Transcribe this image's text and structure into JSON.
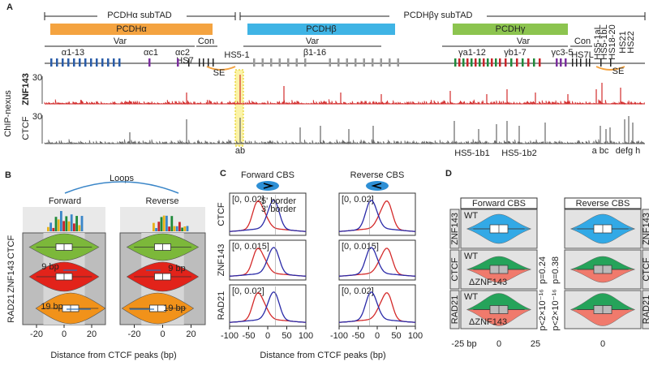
{
  "panel_a": {
    "letter": "A",
    "subtads": [
      "PCDHα subTAD",
      "PCDHβγ subTAD"
    ],
    "clusters": [
      "PCDHα",
      "PCDHβ",
      "PCDHγ"
    ],
    "regions": [
      "Var",
      "Con",
      "Var",
      "Var",
      "Con"
    ],
    "genes": [
      "α1-13",
      "αc1",
      "αc2",
      "HS7",
      "HS5-1",
      "β1-16",
      "γa1-12",
      "γb1-7",
      "γc3-5",
      "HS7L"
    ],
    "hs_labels": [
      "HS5-1aL",
      "HS5-1bL",
      "HS18-20",
      "HS21",
      "HS22"
    ],
    "se": [
      "SE",
      "SE"
    ],
    "track_group": "ChIP-nexus",
    "tracks": [
      {
        "name": "ZNF143",
        "scale": "30"
      },
      {
        "name": "CTCF",
        "scale": "30"
      }
    ],
    "sites": [
      "ab",
      "HS5-1b1",
      "HS5-1b2",
      "a bc",
      "defg h"
    ]
  },
  "panel_b": {
    "letter": "B",
    "loops": "Loops",
    "directions": [
      "Forward",
      "Reverse"
    ],
    "rows": [
      "CTCF",
      "ZNF143",
      "RAD21"
    ],
    "offsets": [
      "9 bp",
      "9 bp",
      "19 bp",
      "19 bp"
    ],
    "xticks": [
      "-20",
      "0",
      "20"
    ],
    "xlabel": "Distance from CTCF peaks (bp)"
  },
  "panel_c": {
    "letter": "C",
    "columns": [
      "Forward CBS",
      "Reverse CBS"
    ],
    "rows": [
      {
        "name": "CTCF",
        "range": "[0, 0.02]"
      },
      {
        "name": "ZNF143",
        "range": "[0, 0.015]"
      },
      {
        "name": "RAD21",
        "range": "[0, 0.02]"
      }
    ],
    "legend": [
      "5' border",
      "3' border"
    ],
    "xticks": [
      "-100",
      "-50",
      "0",
      "50",
      "100"
    ],
    "xlabel": "Distance from CTCF peaks (bp)"
  },
  "panel_d": {
    "letter": "D",
    "columns": [
      "Forward CBS",
      "Reverse CBS"
    ],
    "rows": [
      "ZNF143",
      "CTCF",
      "RAD21"
    ],
    "wt": "WT",
    "ko": "ΔZNF143",
    "pvalues": [
      "p=0.24",
      "p=0.38",
      "p<2×10⁻¹⁶",
      "p<2×10⁻¹⁶"
    ],
    "xticks": [
      "-25 bp",
      "0",
      "25"
    ]
  }
}
